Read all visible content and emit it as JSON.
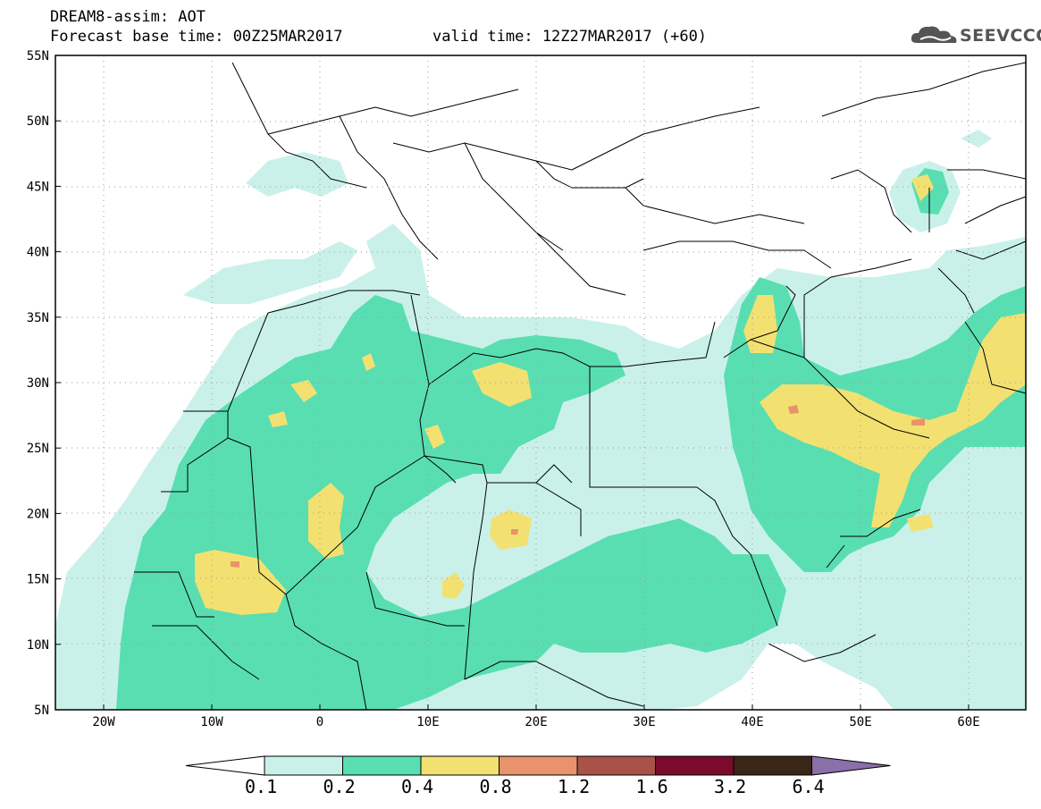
{
  "header": {
    "title": "DREAM8-assim: AOT",
    "base_time": "Forecast base time: 00Z25MAR2017",
    "valid_time": "valid time: 12Z27MAR2017 (+60)",
    "logo": "SEEVCCC"
  },
  "axes": {
    "lat_labels": [
      "55N",
      "50N",
      "45N",
      "40N",
      "35N",
      "30N",
      "25N",
      "20N",
      "15N",
      "10N",
      "5N"
    ],
    "lon_labels": [
      "20W",
      "10W",
      "0",
      "10E",
      "20E",
      "30E",
      "40E",
      "50E",
      "60E"
    ]
  },
  "colorbar": {
    "labels": [
      "0.1",
      "0.2",
      "0.4",
      "0.8",
      "1.2",
      "1.6",
      "3.2",
      "6.4"
    ],
    "colors": [
      "#c9f1ea",
      "#59deb2",
      "#f2e171",
      "#e8936b",
      "#a8524a",
      "#7a0b2c",
      "#3a2616",
      "#8a6fa9"
    ],
    "low_color": "#ffffff"
  },
  "colors": {
    "c1": "#c9f1ea",
    "c2": "#59deb2",
    "c3": "#f2e171",
    "c4": "#e8936b",
    "border": "#000000"
  }
}
